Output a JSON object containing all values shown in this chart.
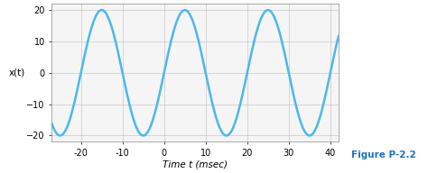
{
  "amplitude": 20,
  "period_ms": 20,
  "phase_rad": 4.71238898,
  "t_start": -27,
  "t_end": 42,
  "xlim": [
    -27,
    42
  ],
  "ylim": [
    -22,
    22
  ],
  "xticks": [
    -20,
    -10,
    0,
    10,
    20,
    30,
    40
  ],
  "yticks": [
    -20,
    -10,
    0,
    10,
    20
  ],
  "xlabel": "Time t (msec)",
  "ylabel": "x(t)",
  "line_color": "#4db8e8",
  "line_width": 1.8,
  "grid_color": "#c8c8c8",
  "bg_color": "#f5f5f5",
  "figure_label": "Figure P-2.2",
  "figure_label_color": "#2070c0"
}
